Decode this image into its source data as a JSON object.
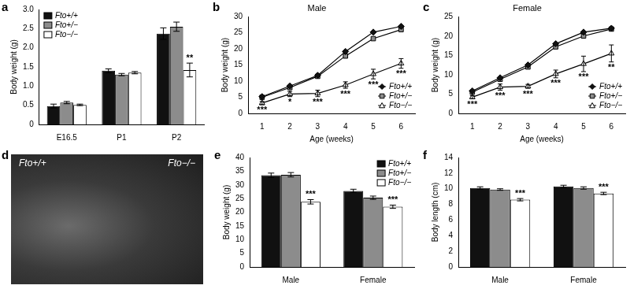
{
  "chart_data": [
    {
      "panel": "a",
      "type": "bar",
      "ylabel": "Body weight (g)",
      "categories": [
        "E16.5",
        "P1",
        "P2"
      ],
      "series": [
        {
          "name": "Fto+/+",
          "color": "#111111",
          "values": [
            0.48,
            1.4,
            2.37
          ],
          "errors": [
            0.05,
            0.05,
            0.15
          ]
        },
        {
          "name": "Fto+/−",
          "color": "#8c8c8c",
          "values": [
            0.57,
            1.3,
            2.55
          ],
          "errors": [
            0.03,
            0.03,
            0.12
          ]
        },
        {
          "name": "Fto−/−",
          "color": "#ffffff",
          "values": [
            0.51,
            1.35,
            1.42
          ],
          "errors": [
            0.02,
            0.03,
            0.18
          ]
        }
      ],
      "annotations": [
        {
          "series": "Fto−/−",
          "category": "P2",
          "text": "**"
        }
      ],
      "ylim": [
        0,
        3
      ],
      "yticks": [
        0,
        0.5,
        {
          "value": 1,
          "label": "1.0"
        },
        1.5,
        {
          "value": 2,
          "label": "2.0"
        },
        2.5,
        {
          "value": 3,
          "label": "3.0"
        }
      ],
      "grid": false,
      "legend": "top-left"
    },
    {
      "panel": "b",
      "type": "line",
      "title": "Male",
      "xlabel": "Age (weeks)",
      "ylabel": "Body weight (g)",
      "categories": [
        "1",
        "2",
        "3",
        "4",
        "5",
        "6"
      ],
      "series": [
        {
          "name": "Fto+/+",
          "color": "#111111",
          "marker": "diamond",
          "values": [
            5.2,
            8.5,
            11.8,
            19.2,
            25.2,
            27.0
          ]
        },
        {
          "name": "Fto+/−",
          "color": "#8c8c8c",
          "marker": "square",
          "values": [
            5.0,
            8.0,
            11.5,
            17.8,
            23.2,
            26.0
          ]
        },
        {
          "name": "Fto−/−",
          "color": "#ffffff",
          "marker": "triangle",
          "values": [
            3.2,
            6.0,
            6.2,
            8.8,
            12.2,
            15.5
          ],
          "errors": [
            0.5,
            0.8,
            1.0,
            1.0,
            1.5,
            1.5
          ]
        }
      ],
      "annotations": [
        {
          "series": "Fto−/−",
          "category": "1",
          "text": "***"
        },
        {
          "series": "Fto−/−",
          "category": "2",
          "text": "*"
        },
        {
          "series": "Fto−/−",
          "category": "3",
          "text": "***"
        },
        {
          "series": "Fto−/−",
          "category": "4",
          "text": "***"
        },
        {
          "series": "Fto−/−",
          "category": "5",
          "text": "***"
        },
        {
          "series": "Fto−/−",
          "category": "6",
          "text": "***"
        }
      ],
      "ylim": [
        0,
        30
      ],
      "yticks": [
        0,
        5,
        10,
        15,
        20,
        25,
        30
      ],
      "grid": false,
      "legend": "bottom-right"
    },
    {
      "panel": "c",
      "type": "line",
      "title": "Female",
      "xlabel": "Age (weeks)",
      "ylabel": "Body weight (g)",
      "categories": [
        "1",
        "2",
        "3",
        "4",
        "5",
        "6"
      ],
      "series": [
        {
          "name": "Fto+/+",
          "color": "#111111",
          "marker": "diamond",
          "values": [
            5.8,
            9.2,
            12.5,
            18.0,
            21.0,
            22.0
          ]
        },
        {
          "name": "Fto+/−",
          "color": "#8c8c8c",
          "marker": "square",
          "values": [
            5.5,
            8.8,
            12.0,
            17.2,
            20.0,
            21.8
          ]
        },
        {
          "name": "Fto−/−",
          "color": "#ffffff",
          "marker": "triangle",
          "values": [
            4.2,
            6.8,
            7.0,
            10.2,
            12.8,
            15.5
          ],
          "errors": [
            0.4,
            0.8,
            0.5,
            1.0,
            2.0,
            2.2
          ]
        }
      ],
      "annotations": [
        {
          "series": "Fto−/−",
          "category": "1",
          "text": "***"
        },
        {
          "series": "Fto−/−",
          "category": "2",
          "text": "***"
        },
        {
          "series": "Fto−/−",
          "category": "3",
          "text": "***"
        },
        {
          "series": "Fto−/−",
          "category": "4",
          "text": "***"
        },
        {
          "series": "Fto−/−",
          "category": "5",
          "text": "***"
        },
        {
          "series": "Fto−/−",
          "category": "6",
          "text": "**"
        }
      ],
      "ylim": [
        0,
        25
      ],
      "yticks": [
        0,
        5,
        10,
        15,
        20,
        25
      ],
      "grid": false,
      "legend": "bottom-right"
    },
    {
      "panel": "e",
      "type": "bar",
      "ylabel": "Body weight (g)",
      "categories": [
        "Male",
        "Female"
      ],
      "series": [
        {
          "name": "Fto+/+",
          "color": "#111111",
          "values": [
            33.5,
            27.8
          ],
          "errors": [
            0.8,
            0.6
          ]
        },
        {
          "name": "Fto+/−",
          "color": "#8c8c8c",
          "values": [
            33.7,
            25.3
          ],
          "errors": [
            0.8,
            0.6
          ]
        },
        {
          "name": "Fto−/−",
          "color": "#ffffff",
          "values": [
            23.8,
            22.0
          ],
          "errors": [
            0.8,
            0.6
          ]
        }
      ],
      "annotations": [
        {
          "series": "Fto−/−",
          "category": "Male",
          "text": "***"
        },
        {
          "series": "Fto−/−",
          "category": "Female",
          "text": "***"
        }
      ],
      "ylim": [
        0,
        40
      ],
      "yticks": [
        0,
        5,
        10,
        15,
        20,
        25,
        30,
        35,
        40
      ],
      "grid": false,
      "legend": "top-right"
    },
    {
      "panel": "f",
      "type": "bar",
      "ylabel": "Body length (cm)",
      "categories": [
        "Male",
        "Female"
      ],
      "series": [
        {
          "name": "Fto+/+",
          "color": "#111111",
          "values": [
            10.1,
            10.3
          ],
          "errors": [
            0.15,
            0.15
          ]
        },
        {
          "name": "Fto+/−",
          "color": "#8c8c8c",
          "values": [
            9.9,
            10.1
          ],
          "errors": [
            0.1,
            0.15
          ]
        },
        {
          "name": "Fto−/−",
          "color": "#ffffff",
          "values": [
            8.6,
            9.4
          ],
          "errors": [
            0.15,
            0.15
          ]
        }
      ],
      "annotations": [
        {
          "series": "Fto−/−",
          "category": "Male",
          "text": "***"
        },
        {
          "series": "Fto−/−",
          "category": "Female",
          "text": "***"
        }
      ],
      "ylim": [
        0,
        14
      ],
      "yticks": [
        0,
        2,
        4,
        6,
        8,
        10,
        12,
        14
      ],
      "grid": false
    }
  ],
  "photo_panel": {
    "panel": "d",
    "labels": [
      "Fto+/+",
      "Fto−/−"
    ]
  }
}
